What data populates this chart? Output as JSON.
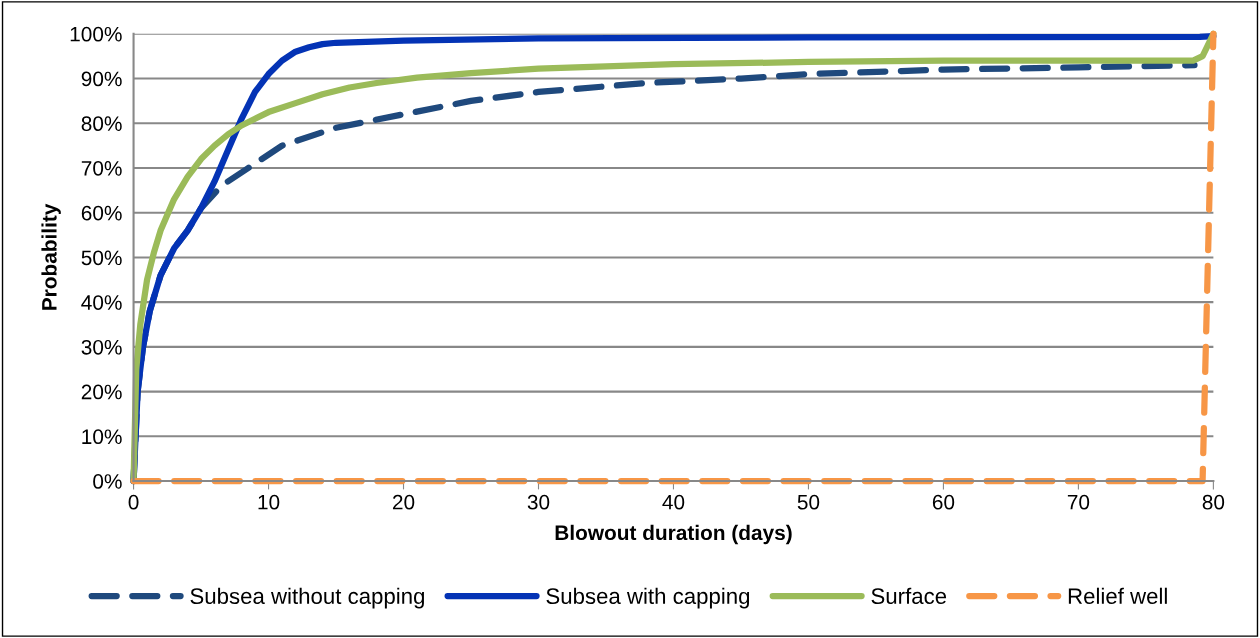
{
  "chart_data": {
    "type": "line",
    "xlabel": "Blowout duration (days)",
    "ylabel": "Probability",
    "xlim": [
      0,
      80
    ],
    "xticks": [
      0,
      10,
      20,
      30,
      40,
      50,
      60,
      70,
      80
    ],
    "ylim": [
      0,
      100
    ],
    "yticks": [
      {
        "value": 0,
        "label": "0%"
      },
      {
        "value": 10,
        "label": "10%"
      },
      {
        "value": 20,
        "label": "20%"
      },
      {
        "value": 30,
        "label": "30%"
      },
      {
        "value": 40,
        "label": "40%"
      },
      {
        "value": 50,
        "label": "50%"
      },
      {
        "value": 60,
        "label": "60%"
      },
      {
        "value": 70,
        "label": "70%"
      },
      {
        "value": 80,
        "label": "80%"
      },
      {
        "value": 90,
        "label": "90%"
      },
      {
        "value": 100,
        "label": "100%"
      }
    ],
    "grid": "y",
    "legend": "bottom",
    "marker": "none",
    "series": [
      {
        "name": "Subsea without capping",
        "color": "#1f497d",
        "line_style": "dashed",
        "x": [
          0,
          0.3,
          0.7,
          1.2,
          2,
          3,
          4,
          5,
          6.5,
          8.5,
          11,
          15,
          20,
          25,
          30,
          38,
          45,
          50,
          60,
          70,
          78.6
        ],
        "values": [
          0,
          20,
          30,
          38,
          46,
          52,
          56,
          61,
          66,
          70,
          75,
          79,
          82,
          85,
          87,
          89,
          90,
          91,
          92,
          92.5,
          93
        ]
      },
      {
        "name": "Subsea with capping",
        "color": "#0433b5",
        "line_style": "solid",
        "x": [
          0,
          0.3,
          0.7,
          1.2,
          2,
          3,
          4,
          5,
          6,
          7,
          8,
          9,
          10,
          11,
          12,
          13,
          14,
          15,
          20,
          30,
          50,
          79,
          80
        ],
        "values": [
          0,
          20,
          30,
          38,
          46,
          52,
          56,
          61,
          67,
          74,
          81,
          87,
          91,
          94,
          96,
          97,
          97.7,
          98,
          98.5,
          99,
          99.2,
          99.3,
          99.5
        ]
      },
      {
        "name": "Surface",
        "color": "#9bbb59",
        "line_style": "solid",
        "x": [
          0,
          0.2,
          0.5,
          1,
          1.5,
          2,
          3,
          4,
          5,
          6,
          7,
          8,
          9,
          10,
          12,
          14,
          16,
          18,
          21,
          25,
          30,
          40,
          50,
          60,
          70,
          78.5,
          79.2,
          80
        ],
        "values": [
          0,
          25,
          35,
          45,
          51,
          56,
          63,
          68,
          72,
          75,
          77.5,
          79.5,
          81,
          82.5,
          84.5,
          86.5,
          88,
          89,
          90.2,
          91.2,
          92.2,
          93.2,
          93.7,
          94,
          94,
          94,
          95,
          100
        ]
      },
      {
        "name": "Relief well",
        "color": "#f79646",
        "line_style": "dashed",
        "x": [
          0,
          79.2,
          80
        ],
        "values": [
          0,
          0,
          100
        ]
      }
    ]
  }
}
